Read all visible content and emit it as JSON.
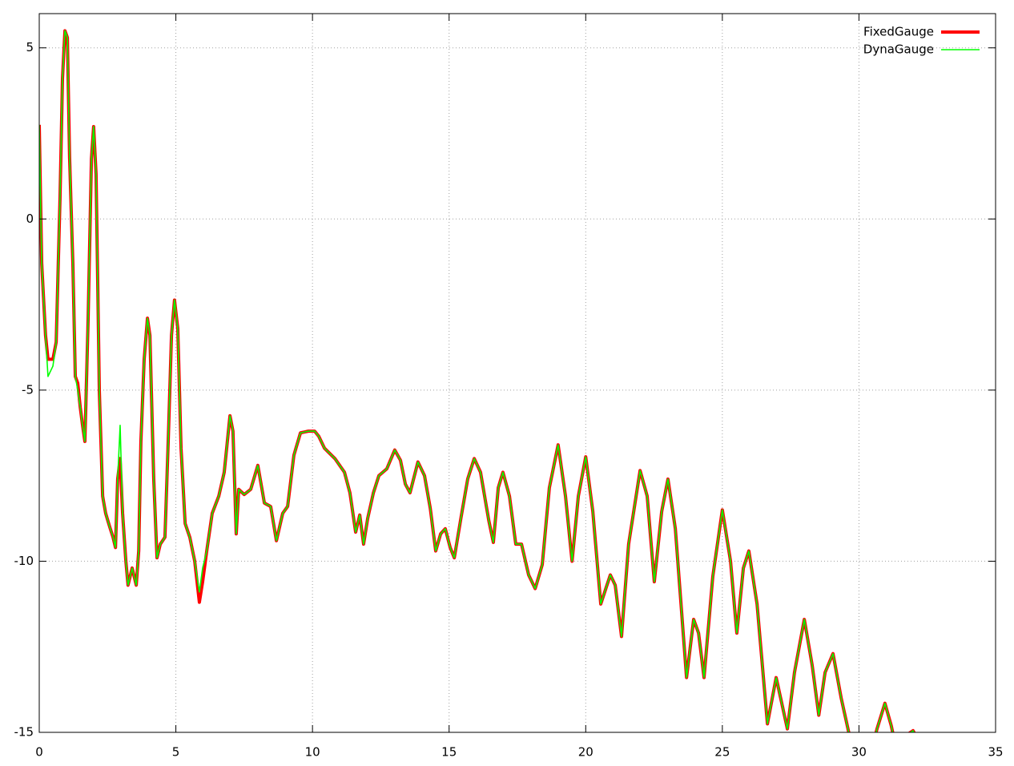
{
  "chart_data": {
    "type": "line",
    "x": [
      0,
      0.09,
      0.23,
      0.32,
      0.5,
      0.62,
      0.76,
      0.85,
      0.94,
      1.03,
      1.11,
      1.23,
      1.32,
      1.41,
      1.5,
      1.58,
      1.67,
      1.79,
      1.91,
      1.99,
      2.08,
      2.2,
      2.32,
      2.43,
      2.58,
      2.7,
      2.79,
      2.87,
      2.96,
      3.05,
      3.17,
      3.25,
      3.4,
      3.55,
      3.64,
      3.72,
      3.84,
      3.96,
      4.05,
      4.19,
      4.31,
      4.43,
      4.6,
      4.72,
      4.84,
      4.95,
      5.07,
      5.19,
      5.34,
      5.51,
      5.69,
      5.86,
      5.98,
      6.13,
      6.33,
      6.57,
      6.77,
      6.98,
      7.09,
      7.21,
      7.3,
      7.5,
      7.74,
      8.0,
      8.24,
      8.47,
      8.68,
      8.91,
      9.09,
      9.32,
      9.56,
      9.85,
      10.08,
      10.23,
      10.44,
      10.82,
      11.17,
      11.37,
      11.58,
      11.73,
      11.87,
      12.02,
      12.23,
      12.43,
      12.72,
      13.01,
      13.22,
      13.4,
      13.57,
      13.86,
      14.1,
      14.31,
      14.51,
      14.69,
      14.86,
      15.04,
      15.19,
      15.42,
      15.68,
      15.92,
      16.15,
      16.45,
      16.62,
      16.8,
      16.97,
      17.21,
      17.44,
      17.65,
      17.91,
      18.15,
      18.41,
      18.67,
      18.99,
      19.26,
      19.5,
      19.73,
      20.0,
      20.26,
      20.55,
      20.9,
      21.08,
      21.31,
      21.57,
      21.99,
      22.25,
      22.51,
      22.78,
      23.01,
      23.28,
      23.69,
      23.95,
      24.13,
      24.33,
      24.65,
      25.0,
      25.3,
      25.53,
      25.77,
      25.97,
      26.27,
      26.65,
      26.97,
      27.38,
      27.64,
      28.0,
      28.29,
      28.53,
      28.76,
      29.05,
      29.35,
      29.64,
      29.93,
      30.37,
      30.66,
      30.95,
      31.18,
      31.4,
      31.7,
      31.98,
      32.28,
      32.86
    ],
    "series": [
      {
        "name": "FixedGauge",
        "color": "#ff0000",
        "values": [
          2.75,
          -1.3,
          -3.4,
          -4.1,
          -4.1,
          -3.6,
          0.6,
          4.1,
          5.5,
          5.3,
          1.8,
          -1.3,
          -4.6,
          -4.8,
          -5.5,
          -6.0,
          -6.5,
          -2.9,
          1.76,
          2.7,
          1.3,
          -5.05,
          -8.1,
          -8.6,
          -9.0,
          -9.3,
          -9.6,
          -7.6,
          -7.0,
          -8.6,
          -10.0,
          -10.7,
          -10.2,
          -10.7,
          -9.7,
          -6.5,
          -4.1,
          -2.9,
          -3.4,
          -7.6,
          -9.9,
          -9.5,
          -9.3,
          -6.5,
          -3.4,
          -2.37,
          -3.2,
          -6.7,
          -8.9,
          -9.3,
          -10.0,
          -11.2,
          -10.6,
          -9.7,
          -8.6,
          -8.1,
          -7.4,
          -5.75,
          -6.2,
          -9.2,
          -7.9,
          -8.05,
          -7.9,
          -7.2,
          -8.3,
          -8.4,
          -9.4,
          -8.6,
          -8.4,
          -6.9,
          -6.25,
          -6.2,
          -6.2,
          -6.35,
          -6.7,
          -7.0,
          -7.4,
          -8.0,
          -9.15,
          -8.65,
          -9.5,
          -8.75,
          -8.0,
          -7.5,
          -7.3,
          -6.75,
          -7.05,
          -7.75,
          -8.0,
          -7.1,
          -7.5,
          -8.45,
          -9.7,
          -9.2,
          -9.05,
          -9.6,
          -9.9,
          -8.8,
          -7.6,
          -7.0,
          -7.4,
          -8.8,
          -9.45,
          -7.85,
          -7.4,
          -8.1,
          -9.5,
          -9.5,
          -10.4,
          -10.8,
          -10.1,
          -7.85,
          -6.6,
          -8.1,
          -10.0,
          -8.1,
          -6.95,
          -8.55,
          -11.25,
          -10.4,
          -10.7,
          -12.2,
          -9.5,
          -7.35,
          -8.1,
          -10.6,
          -8.55,
          -7.6,
          -9.05,
          -13.4,
          -11.7,
          -12.1,
          -13.4,
          -10.45,
          -8.5,
          -10.0,
          -12.1,
          -10.2,
          -9.7,
          -11.25,
          -14.75,
          -13.4,
          -14.9,
          -13.25,
          -11.7,
          -13.05,
          -14.5,
          -13.25,
          -12.7,
          -14.0,
          -15.05,
          -15.8,
          -15.8,
          -14.9,
          -14.15,
          -14.8,
          -15.6,
          -15.1,
          -14.95,
          -15.4,
          -16.0
        ]
      },
      {
        "name": "DynaGauge",
        "color": "#00ff00",
        "values": [
          2.75,
          -1.3,
          -3.4,
          -4.6,
          -4.3,
          -3.6,
          0.6,
          4.1,
          5.5,
          5.3,
          1.8,
          -1.3,
          -4.6,
          -5.0,
          -5.5,
          -6.0,
          -6.5,
          -2.9,
          1.76,
          2.7,
          1.3,
          -5.05,
          -8.1,
          -8.6,
          -9.0,
          -9.3,
          -9.6,
          -7.6,
          -6.03,
          -8.6,
          -10.0,
          -10.7,
          -10.2,
          -10.7,
          -9.7,
          -6.5,
          -4.1,
          -2.9,
          -3.4,
          -7.6,
          -9.9,
          -9.5,
          -9.3,
          -6.5,
          -3.4,
          -2.37,
          -3.2,
          -6.7,
          -8.9,
          -9.3,
          -10.0,
          -10.9,
          -10.2,
          -9.7,
          -8.6,
          -8.1,
          -7.4,
          -5.75,
          -6.2,
          -9.2,
          -7.9,
          -8.05,
          -7.9,
          -7.2,
          -8.3,
          -8.4,
          -9.4,
          -8.6,
          -8.4,
          -6.9,
          -6.25,
          -6.2,
          -6.2,
          -6.35,
          -6.7,
          -7.0,
          -7.4,
          -8.0,
          -9.15,
          -8.65,
          -9.5,
          -8.75,
          -8.0,
          -7.5,
          -7.3,
          -6.75,
          -7.05,
          -7.75,
          -8.0,
          -7.1,
          -7.5,
          -8.45,
          -9.7,
          -9.2,
          -9.05,
          -9.6,
          -9.9,
          -8.8,
          -7.6,
          -7.0,
          -7.4,
          -8.8,
          -9.45,
          -7.85,
          -7.4,
          -8.1,
          -9.5,
          -9.5,
          -10.4,
          -10.8,
          -10.1,
          -7.85,
          -6.6,
          -8.1,
          -10.0,
          -8.1,
          -6.95,
          -8.55,
          -11.25,
          -10.4,
          -10.7,
          -12.2,
          -9.5,
          -7.35,
          -8.1,
          -10.6,
          -8.55,
          -7.6,
          -9.05,
          -13.4,
          -11.7,
          -12.1,
          -13.4,
          -10.45,
          -8.5,
          -10.0,
          -12.1,
          -10.2,
          -9.7,
          -11.25,
          -14.75,
          -13.4,
          -14.9,
          -13.25,
          -11.7,
          -13.05,
          -14.5,
          -13.25,
          -12.7,
          -14.0,
          -15.05,
          -15.8,
          -15.8,
          -14.9,
          -14.15,
          -14.8,
          -15.6,
          -15.1,
          -14.95,
          -15.4,
          -16.0
        ]
      }
    ],
    "xlim": [
      0,
      35
    ],
    "ylim": [
      -15,
      6
    ],
    "xticks": [
      0,
      5,
      10,
      15,
      20,
      25,
      30,
      35
    ],
    "yticks": [
      -15,
      -10,
      -5,
      0,
      5
    ],
    "grid": true,
    "legend": "top-right"
  }
}
